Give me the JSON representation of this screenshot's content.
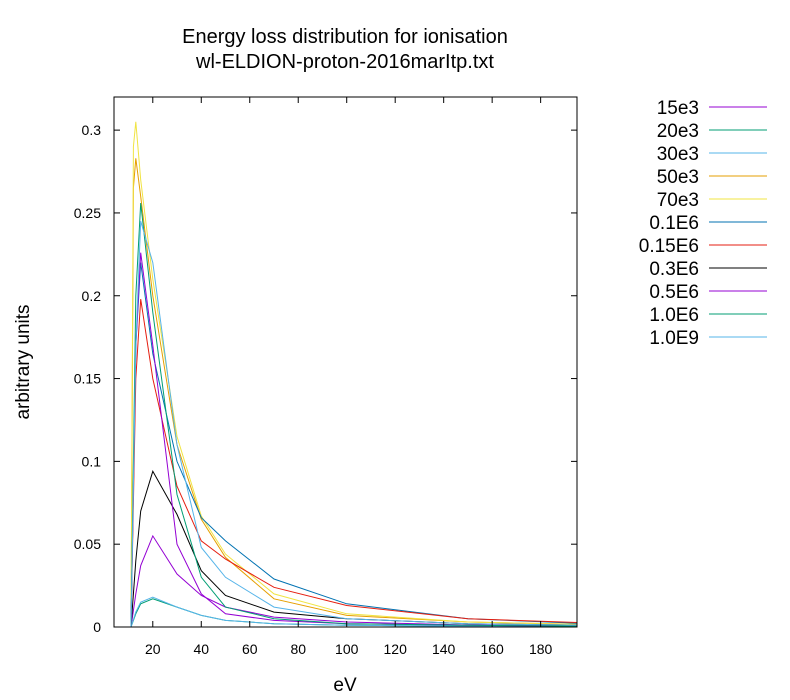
{
  "chart_data": {
    "type": "line",
    "title_line1": "Energy loss distribution for ionisation",
    "title_line2": "wl-ELDION-proton-2016marItp.txt",
    "xlabel": "eV",
    "ylabel": "arbitrary units",
    "xlim": [
      4,
      195
    ],
    "ylim": [
      0,
      0.32
    ],
    "xticks": [
      20,
      40,
      60,
      80,
      100,
      120,
      140,
      160,
      180
    ],
    "yticks": [
      0,
      0.05,
      0.1,
      0.15,
      0.2,
      0.25,
      0.3
    ],
    "ytick_labels": [
      "0",
      "0.05",
      "0.1",
      "0.15",
      "0.2",
      "0.25",
      "0.3"
    ],
    "grid": false,
    "legend_position": "outside-right",
    "series": [
      {
        "name": "15e3",
        "color": "#9400d3",
        "x": [
          11,
          13,
          15,
          20,
          30,
          40,
          50,
          70,
          100,
          150,
          200
        ],
        "y": [
          0.0,
          0.02,
          0.037,
          0.055,
          0.032,
          0.019,
          0.012,
          0.006,
          0.003,
          0.0012,
          0.0006
        ]
      },
      {
        "name": "20e3",
        "color": "#009e73",
        "x": [
          11,
          13,
          15,
          20,
          30,
          40,
          50,
          70,
          100,
          150,
          200
        ],
        "y": [
          0.0,
          0.008,
          0.014,
          0.017,
          0.012,
          0.007,
          0.004,
          0.002,
          0.001,
          0.0005,
          0.0003
        ]
      },
      {
        "name": "30e3",
        "color": "#56b4e9",
        "x": [
          11,
          13,
          15,
          20,
          30,
          40,
          50,
          70,
          100,
          150,
          200
        ],
        "y": [
          0.0,
          0.009,
          0.015,
          0.018,
          0.012,
          0.007,
          0.004,
          0.002,
          0.001,
          0.0005,
          0.0003
        ]
      },
      {
        "name": "50e3",
        "color": "#e69f00",
        "x": [
          11,
          12,
          13,
          15,
          20,
          30,
          40,
          50,
          70,
          100,
          150,
          200
        ],
        "y": [
          0.0,
          0.265,
          0.283,
          0.26,
          0.2,
          0.11,
          0.065,
          0.042,
          0.017,
          0.007,
          0.003,
          0.0015
        ]
      },
      {
        "name": "70e3",
        "color": "#f0e442",
        "x": [
          11,
          12,
          13,
          15,
          20,
          30,
          40,
          50,
          70,
          100,
          150,
          200
        ],
        "y": [
          0.0,
          0.29,
          0.305,
          0.27,
          0.21,
          0.115,
          0.067,
          0.044,
          0.02,
          0.008,
          0.003,
          0.0015
        ]
      },
      {
        "name": "0.1E6",
        "color": "#0072b2",
        "x": [
          11,
          13,
          15,
          20,
          30,
          40,
          50,
          70,
          100,
          150,
          200
        ],
        "y": [
          0.0,
          0.17,
          0.22,
          0.165,
          0.1,
          0.066,
          0.052,
          0.029,
          0.014,
          0.005,
          0.002
        ]
      },
      {
        "name": "0.15E6",
        "color": "#e51e10",
        "x": [
          11,
          13,
          15,
          20,
          30,
          40,
          50,
          70,
          100,
          150,
          200
        ],
        "y": [
          0.0,
          0.15,
          0.198,
          0.15,
          0.085,
          0.052,
          0.041,
          0.024,
          0.013,
          0.005,
          0.0025
        ]
      },
      {
        "name": "0.3E6",
        "color": "#000000",
        "x": [
          11,
          13,
          15,
          20,
          30,
          40,
          50,
          70,
          100,
          150,
          200
        ],
        "y": [
          0.0,
          0.04,
          0.07,
          0.094,
          0.068,
          0.034,
          0.019,
          0.009,
          0.005,
          0.002,
          0.001
        ]
      },
      {
        "name": "0.5E6",
        "color": "#9400d3",
        "x": [
          11,
          13,
          15,
          20,
          30,
          40,
          50,
          70,
          100,
          150,
          200
        ],
        "y": [
          0.0,
          0.17,
          0.226,
          0.17,
          0.05,
          0.02,
          0.008,
          0.004,
          0.002,
          0.001,
          0.0005
        ]
      },
      {
        "name": "1.0E6",
        "color": "#009e73",
        "x": [
          11,
          13,
          15,
          20,
          30,
          40,
          50,
          70,
          100,
          150,
          200
        ],
        "y": [
          0.0,
          0.2,
          0.256,
          0.19,
          0.08,
          0.03,
          0.012,
          0.005,
          0.002,
          0.001,
          0.0005
        ]
      },
      {
        "name": "1.0E9",
        "color": "#56b4e9",
        "x": [
          11,
          13,
          15,
          20,
          30,
          40,
          50,
          70,
          100,
          150,
          200
        ],
        "y": [
          0.0,
          0.17,
          0.245,
          0.22,
          0.11,
          0.048,
          0.03,
          0.012,
          0.005,
          0.002,
          0.001
        ]
      }
    ]
  }
}
